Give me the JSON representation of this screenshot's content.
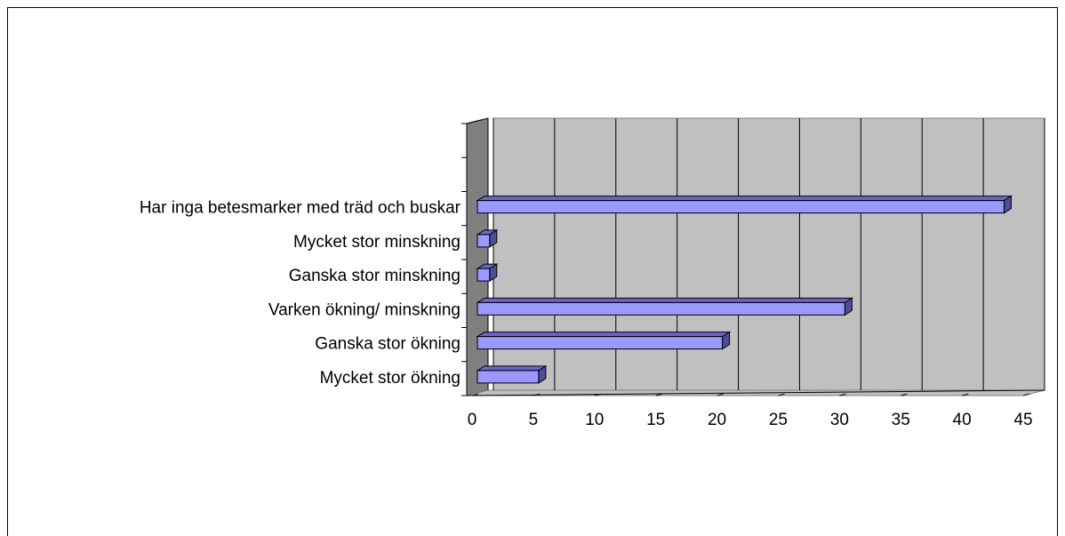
{
  "chart_data": {
    "type": "bar3d",
    "orientation": "horizontal",
    "categories": [
      "Mycket stor ökning",
      "Ganska stor ökning",
      "Varken ökning/ minskning",
      "Ganska stor minskning",
      "Mycket stor minskning",
      "Har inga betesmarker med träd och buskar",
      null,
      null
    ],
    "values": [
      5,
      20,
      30,
      1,
      1,
      43,
      null,
      null
    ],
    "color": "#9999ff",
    "xlim": [
      0,
      45
    ],
    "xticks": [
      0,
      5,
      10,
      15,
      20,
      25,
      30,
      35,
      40,
      45
    ],
    "grid": true
  }
}
